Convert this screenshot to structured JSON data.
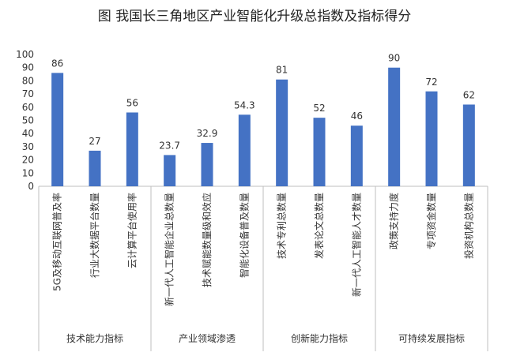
{
  "chart_data": {
    "type": "bar",
    "title": "图  我国长三角地区产业智能化升级总指数及指标得分",
    "ylim": [
      0,
      100
    ],
    "yticks": [
      0,
      10,
      20,
      30,
      40,
      50,
      60,
      70,
      80,
      90,
      100
    ],
    "bar_color": "#4472C4",
    "categories": [
      "5G及移动互联网普及率",
      "行业大数据平台数量",
      "云计算平台使用率",
      "新一代人工智能企业总数量",
      "技术赋能数量级和效应",
      "智能化设备普及数量",
      "技术专利总数量",
      "发表论文总数量",
      "新一代人工智能人才数量",
      "政策支持力度",
      "专项资金数量",
      "投资机构总数量"
    ],
    "values": [
      86,
      27,
      56,
      23.7,
      32.9,
      54.3,
      81,
      52,
      46,
      90,
      72,
      62
    ],
    "data_labels": [
      "86",
      "27",
      "56",
      "23.7",
      "32.9",
      "54.3",
      "81",
      "52",
      "46",
      "90",
      "72",
      "62"
    ],
    "groups": [
      {
        "name": "技术能力指标",
        "count": 3
      },
      {
        "name": "产业领域渗透",
        "count": 3
      },
      {
        "name": "创新能力指标",
        "count": 3
      },
      {
        "name": "可持续发展指标",
        "count": 3
      }
    ]
  }
}
